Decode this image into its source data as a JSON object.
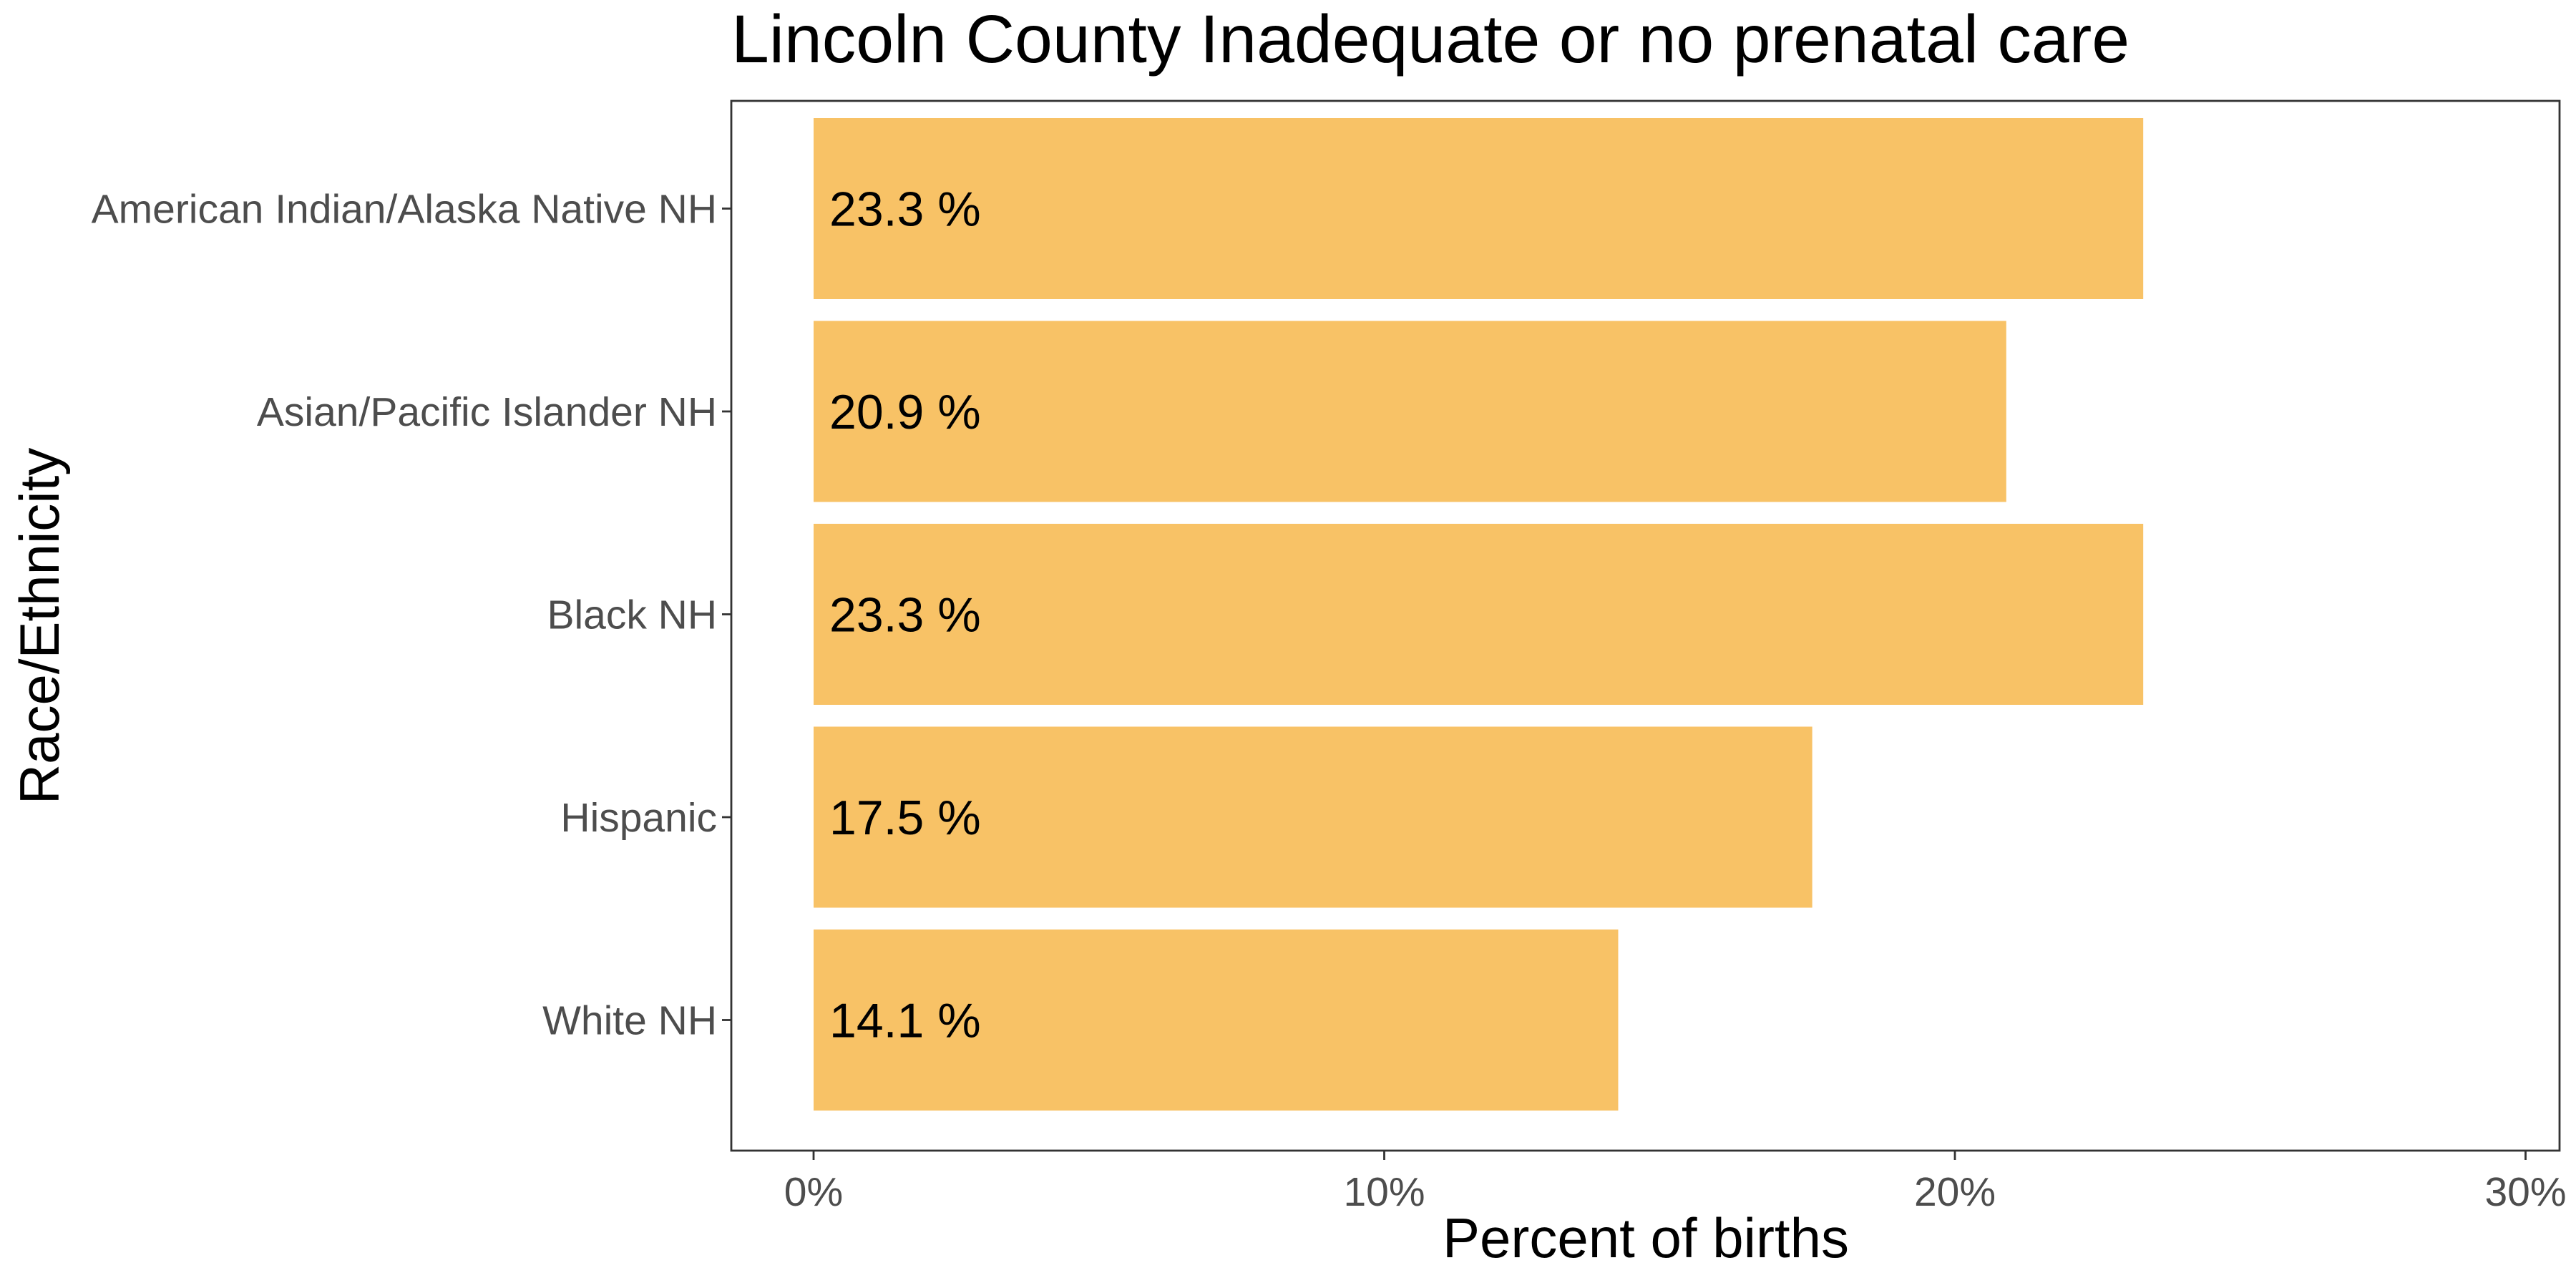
{
  "chart_data": {
    "type": "bar",
    "orientation": "horizontal",
    "title": "Lincoln County Inadequate or no prenatal care",
    "xlabel": "Percent of births",
    "ylabel": "Race/Ethnicity",
    "categories": [
      "American Indian/Alaska Native NH",
      "Asian/Pacific Islander NH",
      "Black NH",
      "Hispanic",
      "White NH"
    ],
    "values": [
      23.3,
      20.9,
      23.3,
      17.5,
      14.1
    ],
    "data_labels": [
      "23.3 %",
      "20.9 %",
      "23.3 %",
      "17.5 %",
      "14.1 %"
    ],
    "xlim": [
      0,
      30
    ],
    "x_ticks": [
      0,
      10,
      20,
      30
    ],
    "x_tick_labels": [
      "0%",
      "10%",
      "20%",
      "30%"
    ],
    "bar_color": "#F8C266",
    "grid": false,
    "legend": "none"
  }
}
